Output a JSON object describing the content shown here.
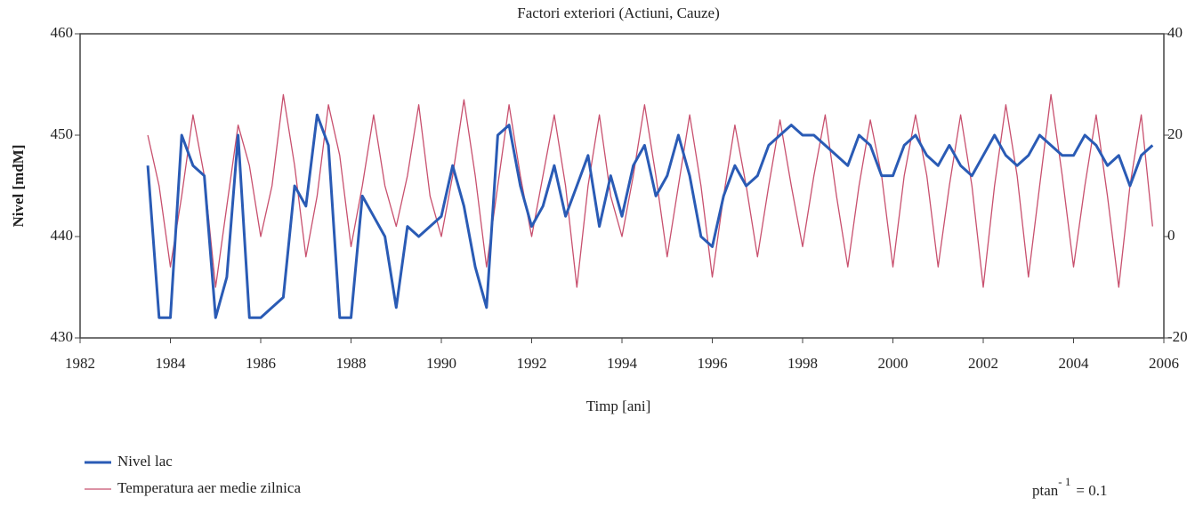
{
  "chart_data": {
    "type": "line",
    "title": "Factori exteriori (Actiuni, Cauze)",
    "x_label": "Timp [ani]",
    "y_label": "Nivel [mdM]",
    "xlim": [
      1982,
      2006
    ],
    "xticks": [
      1982,
      1984,
      1986,
      1988,
      1990,
      1992,
      1994,
      1996,
      1998,
      2000,
      2002,
      2004,
      2006
    ],
    "ylim": [
      430,
      460
    ],
    "yticks": [
      430,
      440,
      450,
      460
    ],
    "y2lim": [
      -20,
      40
    ],
    "y2ticks": [
      -20,
      0,
      20,
      40
    ],
    "x": [
      1983.5,
      1983.75,
      1984,
      1984.25,
      1984.5,
      1984.75,
      1985,
      1985.25,
      1985.5,
      1985.75,
      1986,
      1986.25,
      1986.5,
      1986.75,
      1987,
      1987.25,
      1987.5,
      1987.75,
      1988,
      1988.25,
      1988.5,
      1988.75,
      1989,
      1989.25,
      1989.5,
      1989.75,
      1990,
      1990.25,
      1990.5,
      1990.75,
      1991,
      1991.25,
      1991.5,
      1991.75,
      1992,
      1992.25,
      1992.5,
      1992.75,
      1993,
      1993.25,
      1993.5,
      1993.75,
      1994,
      1994.25,
      1994.5,
      1994.75,
      1995,
      1995.25,
      1995.5,
      1995.75,
      1996,
      1996.25,
      1996.5,
      1996.75,
      1997,
      1997.25,
      1997.5,
      1997.75,
      1998,
      1998.25,
      1998.5,
      1998.75,
      1999,
      1999.25,
      1999.5,
      1999.75,
      2000,
      2000.25,
      2000.5,
      2000.75,
      2001,
      2001.25,
      2001.5,
      2001.75,
      2002,
      2002.25,
      2002.5,
      2002.75,
      2003,
      2003.25,
      2003.5,
      2003.75,
      2004,
      2004.25,
      2004.5,
      2004.75,
      2005,
      2005.25,
      2005.5,
      2005.75
    ],
    "series": [
      {
        "name": "Nivel lac",
        "color": "#2a5bb5",
        "axis": "y",
        "values": [
          447,
          432,
          432,
          450,
          447,
          446,
          432,
          436,
          450,
          432,
          432,
          433,
          434,
          445,
          443,
          452,
          449,
          432,
          432,
          444,
          442,
          440,
          433,
          441,
          440,
          441,
          442,
          447,
          443,
          437,
          433,
          450,
          451,
          445,
          441,
          443,
          447,
          442,
          445,
          448,
          441,
          446,
          442,
          447,
          449,
          444,
          446,
          450,
          446,
          440,
          439,
          444,
          447,
          445,
          446,
          449,
          450,
          451,
          450,
          450,
          449,
          448,
          447,
          450,
          449,
          446,
          446,
          449,
          450,
          448,
          447,
          449,
          447,
          446,
          448,
          450,
          448,
          447,
          448,
          450,
          449,
          448,
          448,
          450,
          449,
          447,
          448,
          445,
          448,
          449
        ]
      },
      {
        "name": "Temperatura aer medie zilnica",
        "color": "#c8506e",
        "axis": "y2",
        "values": [
          20,
          10,
          -6,
          8,
          24,
          12,
          -10,
          6,
          22,
          14,
          0,
          10,
          28,
          14,
          -4,
          8,
          26,
          16,
          -2,
          10,
          24,
          10,
          2,
          12,
          26,
          8,
          0,
          12,
          27,
          12,
          -6,
          10,
          26,
          12,
          0,
          12,
          24,
          10,
          -10,
          10,
          24,
          8,
          0,
          12,
          26,
          12,
          -4,
          10,
          24,
          10,
          -8,
          8,
          22,
          10,
          -4,
          10,
          23,
          10,
          -2,
          12,
          24,
          8,
          -6,
          10,
          23,
          12,
          -6,
          12,
          24,
          12,
          -6,
          10,
          24,
          10,
          -10,
          10,
          26,
          12,
          -8,
          10,
          28,
          12,
          -6,
          10,
          24,
          8,
          -10,
          10,
          24,
          2
        ]
      }
    ],
    "annotation": {
      "base": "ptan",
      "sup": "- 1",
      "rest": "= 0.1"
    }
  }
}
